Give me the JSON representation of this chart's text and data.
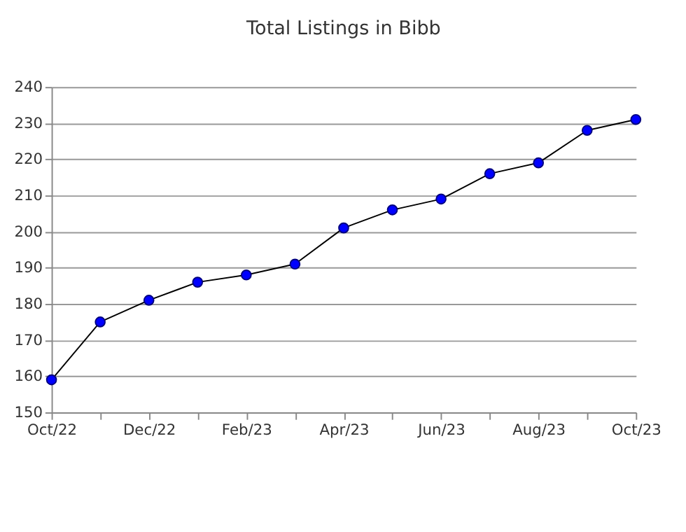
{
  "chart_data": {
    "type": "line",
    "title": "Total Listings in Bibb",
    "categories": [
      "Oct/22",
      null,
      "Dec/22",
      null,
      "Feb/23",
      null,
      "Apr/23",
      null,
      "Jun/23",
      null,
      "Aug/23",
      null,
      "Oct/23"
    ],
    "series": [
      {
        "color": "#0000ff",
        "values": [
          159,
          175,
          181,
          186,
          188,
          191,
          201,
          206,
          209,
          216,
          219,
          228,
          231
        ]
      }
    ],
    "ylim": [
      150,
      240
    ],
    "yticks": [
      150,
      160,
      170,
      180,
      190,
      200,
      210,
      220,
      230,
      240
    ],
    "grid": "y",
    "marker": "circle",
    "line_style": "solid"
  }
}
